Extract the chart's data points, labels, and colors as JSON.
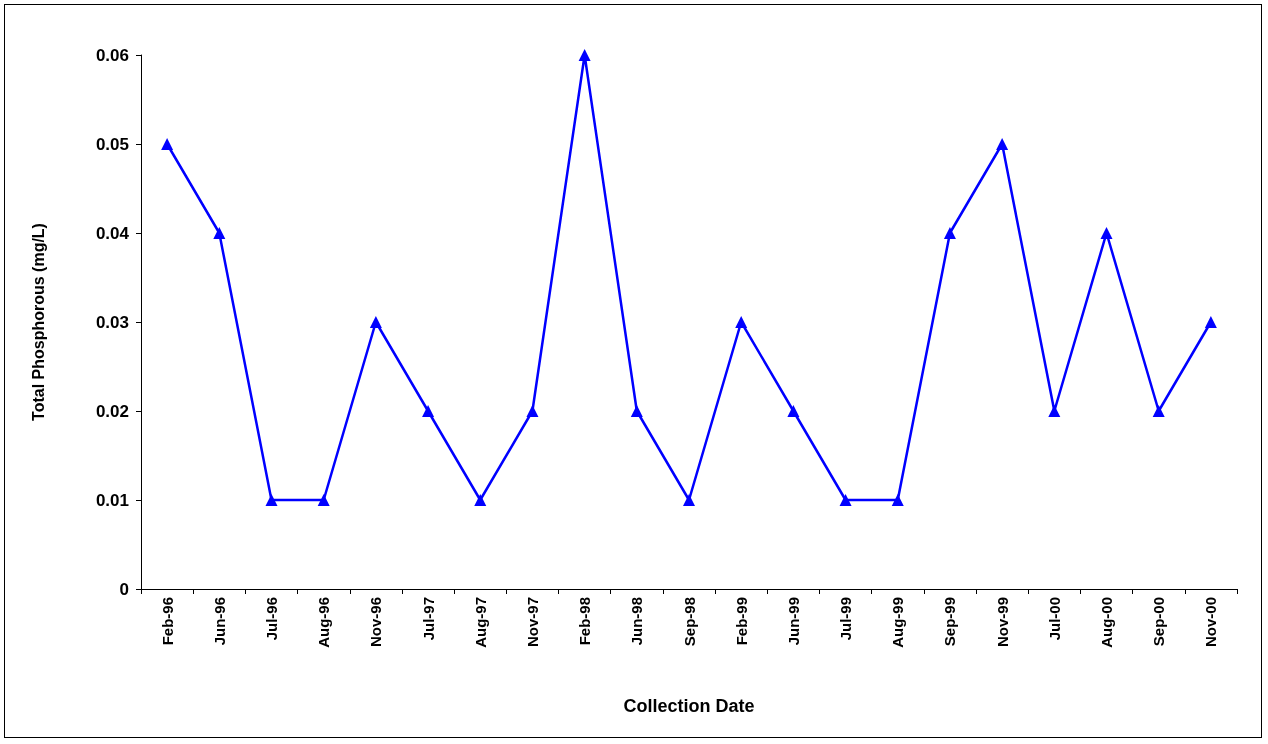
{
  "chart_data": {
    "type": "line",
    "xlabel": "Collection Date",
    "ylabel": "Total Phosphorous (mg/L)",
    "categories": [
      "Feb-96",
      "Jun-96",
      "Jul-96",
      "Aug-96",
      "Nov-96",
      "Jul-97",
      "Aug-97",
      "Nov-97",
      "Feb-98",
      "Jun-98",
      "Sep-98",
      "Feb-99",
      "Jun-99",
      "Jul-99",
      "Aug-99",
      "Sep-99",
      "Nov-99",
      "Jul-00",
      "Aug-00",
      "Sep-00",
      "Nov-00"
    ],
    "series": [
      {
        "color": "#0000ff",
        "values": [
          0.05,
          0.04,
          0.01,
          0.01,
          0.03,
          0.02,
          0.01,
          0.02,
          0.06,
          0.02,
          0.01,
          0.03,
          0.02,
          0.01,
          0.01,
          0.04,
          0.05,
          0.02,
          0.04,
          0.02,
          0.03
        ]
      }
    ],
    "ylim": [
      0,
      0.06
    ],
    "yticks": [
      0,
      0.01,
      0.02,
      0.03,
      0.04,
      0.05,
      0.06
    ],
    "grid": false,
    "marker": "triangle",
    "line_style": "solid"
  }
}
